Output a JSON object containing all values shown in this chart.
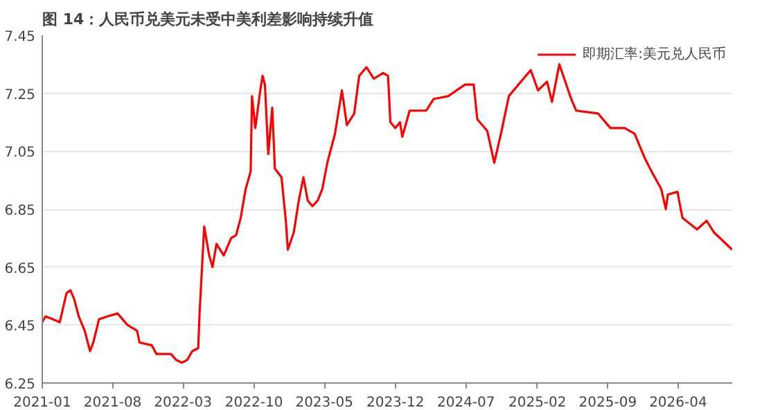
{
  "chart_data": {
    "type": "line",
    "title": "图 14：人民币兑美元未受中美利差影响持续升值",
    "x": [
      "2021-01-01",
      "2021-01-11",
      "2021-02-02",
      "2021-02-23",
      "2021-03-15",
      "2021-03-27",
      "2021-04-07",
      "2021-04-21",
      "2021-05-09",
      "2021-05-25",
      "2021-06-04",
      "2021-06-21",
      "2021-07-17",
      "2021-08-16",
      "2021-09-15",
      "2021-10-14",
      "2021-10-21",
      "2021-11-27",
      "2021-12-11",
      "2022-01-24",
      "2022-02-08",
      "2022-02-26",
      "2022-03-14",
      "2022-03-29",
      "2022-04-16",
      "2022-04-20",
      "2022-05-04",
      "2022-05-19",
      "2022-05-29",
      "2022-06-10",
      "2022-07-02",
      "2022-07-24",
      "2022-08-08",
      "2022-08-22",
      "2022-09-06",
      "2022-09-21",
      "2022-09-25",
      "2022-10-05",
      "2022-10-20",
      "2022-10-27",
      "2022-11-03",
      "2022-11-13",
      "2022-11-25",
      "2022-12-03",
      "2022-12-23",
      "2023-01-05",
      "2023-01-11",
      "2023-01-29",
      "2023-02-13",
      "2023-02-27",
      "2023-03-12",
      "2023-03-26",
      "2023-04-11",
      "2023-04-25",
      "2023-05-10",
      "2023-06-02",
      "2023-06-23",
      "2023-07-08",
      "2023-07-30",
      "2023-08-14",
      "2023-09-05",
      "2023-09-27",
      "2023-10-25",
      "2023-11-09",
      "2023-11-16",
      "2023-12-01",
      "2023-12-15",
      "2023-12-22",
      "2024-01-13",
      "2024-03-03",
      "2024-03-25",
      "2024-05-08",
      "2024-06-28",
      "2024-07-24",
      "2024-08-04",
      "2024-09-03",
      "2024-09-24",
      "2024-10-16",
      "2024-11-07",
      "2024-12-06",
      "2025-01-12",
      "2025-02-03",
      "2025-03-02",
      "2025-03-17",
      "2025-04-08",
      "2025-05-14",
      "2025-05-29",
      "2025-08-03",
      "2025-09-09",
      "2025-10-22",
      "2025-11-21",
      "2025-12-20",
      "2026-01-11",
      "2026-02-09",
      "2026-02-23",
      "2026-03-01",
      "2026-03-30",
      "2026-04-14",
      "2026-05-28",
      "2026-06-26",
      "2026-07-18",
      "2026-09-11"
    ],
    "series": [
      {
        "name": "即期汇率:美元兑人民币",
        "color": "#ff0000",
        "values": [
          6.46,
          6.48,
          6.47,
          6.46,
          6.56,
          6.57,
          6.54,
          6.48,
          6.43,
          6.36,
          6.39,
          6.47,
          6.48,
          6.49,
          6.45,
          6.43,
          6.39,
          6.38,
          6.35,
          6.35,
          6.33,
          6.32,
          6.33,
          6.36,
          6.37,
          6.49,
          6.79,
          6.69,
          6.65,
          6.73,
          6.69,
          6.75,
          6.76,
          6.82,
          6.92,
          6.98,
          7.24,
          7.13,
          7.26,
          7.31,
          7.28,
          7.04,
          7.2,
          6.99,
          6.96,
          6.81,
          6.71,
          6.77,
          6.88,
          6.96,
          6.88,
          6.86,
          6.88,
          6.92,
          7.01,
          7.11,
          7.26,
          7.14,
          7.18,
          7.31,
          7.34,
          7.3,
          7.32,
          7.31,
          7.15,
          7.13,
          7.15,
          7.1,
          7.19,
          7.19,
          7.23,
          7.24,
          7.28,
          7.28,
          7.16,
          7.12,
          7.01,
          7.12,
          7.24,
          7.28,
          7.33,
          7.26,
          7.29,
          7.22,
          7.35,
          7.23,
          7.19,
          7.18,
          7.13,
          7.13,
          7.11,
          7.03,
          6.98,
          6.92,
          6.85,
          6.9,
          6.91,
          6.82,
          6.78,
          6.81,
          6.77,
          6.71
        ]
      }
    ],
    "xlim": [
      "2021-01-01",
      "2026-09-11"
    ],
    "xticks": [
      "2021-01",
      "2021-08",
      "2022-03",
      "2022-10",
      "2023-05",
      "2023-12",
      "2024-07",
      "2025-02",
      "2025-09",
      "2026-04"
    ],
    "ylim": [
      6.25,
      7.45
    ],
    "yticks": [
      6.25,
      6.45,
      6.65,
      6.85,
      7.05,
      7.25,
      7.45
    ],
    "grid": "y",
    "legend": "top right",
    "marker": "none",
    "line_style": "solid"
  }
}
